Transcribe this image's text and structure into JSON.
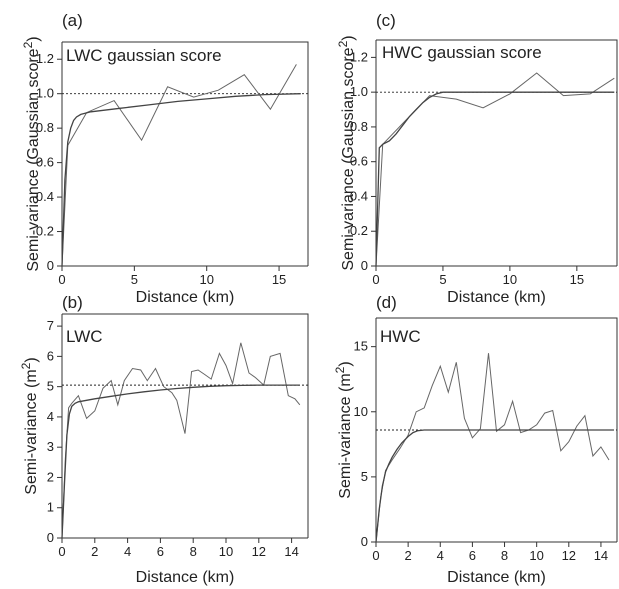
{
  "chart_data": [
    {
      "id": "a",
      "type": "line",
      "panel_label": "(a)",
      "title": "LWC gaussian score",
      "xlabel": "Distance (km)",
      "ylabel": "Semi-variance (Gaussian score²)",
      "ylabel_main": "Semi-variance (Gaussian score",
      "ylabel_sup": "2",
      "ylabel_end": ")",
      "xlim": [
        0,
        17
      ],
      "ylim": [
        0,
        1.3
      ],
      "xticks": [
        0,
        5,
        10,
        15
      ],
      "yticks": [
        0,
        0.2,
        0.4,
        0.6,
        0.8,
        1.0,
        1.2
      ],
      "ytick_labels": [
        "0",
        "0.2",
        "0.4",
        "0.6",
        "0.8",
        "1.0",
        "1.2"
      ],
      "frame": "top-right",
      "sill": 1.0,
      "series": [
        {
          "role": "empirical",
          "x": [
            0,
            0.4,
            1.7,
            3.6,
            5.5,
            7.3,
            9.1,
            10.8,
            12.6,
            14.4,
            16.2
          ],
          "y": [
            0.0,
            0.7,
            0.89,
            0.96,
            0.73,
            1.04,
            0.98,
            1.02,
            1.11,
            0.91,
            1.17
          ]
        },
        {
          "role": "model",
          "x": [
            0,
            0.2,
            0.4,
            0.6,
            0.8,
            1.0,
            1.3,
            2,
            4,
            6,
            8,
            10,
            12,
            14,
            16.5
          ],
          "y": [
            0.0,
            0.5,
            0.72,
            0.8,
            0.845,
            0.865,
            0.88,
            0.895,
            0.915,
            0.935,
            0.955,
            0.97,
            0.985,
            0.995,
            1.0
          ]
        }
      ]
    },
    {
      "id": "b",
      "type": "line",
      "panel_label": "(b)",
      "title": "LWC",
      "xlabel": "Distance (km)",
      "ylabel": "Semi-variance (m²)",
      "ylabel_main": "Semi-variance (m",
      "ylabel_sup": "2",
      "ylabel_end": ")",
      "xlim": [
        0,
        15
      ],
      "ylim": [
        0,
        7.4
      ],
      "xticks": [
        0,
        2,
        4,
        6,
        8,
        10,
        12,
        14
      ],
      "yticks": [
        0,
        1,
        2,
        3,
        4,
        5,
        6,
        7
      ],
      "ytick_labels": [
        "0",
        "1",
        "2",
        "3",
        "4",
        "5",
        "6",
        "7"
      ],
      "frame": "top-right",
      "sill": 5.05,
      "series": [
        {
          "role": "empirical",
          "x": [
            0,
            0.2,
            0.4,
            0.6,
            1.0,
            1.5,
            2.0,
            2.5,
            3.0,
            3.4,
            3.8,
            4.3,
            4.8,
            5.2,
            5.7,
            6.2,
            6.7,
            7.0,
            7.5,
            7.9,
            8.3,
            8.7,
            9.1,
            9.6,
            10.0,
            10.4,
            10.9,
            11.4,
            11.8,
            12.3,
            12.7,
            13.3,
            13.8,
            14.2,
            14.5
          ],
          "y": [
            0.0,
            2.6,
            4.3,
            4.45,
            4.7,
            3.95,
            4.2,
            4.95,
            5.2,
            4.4,
            5.2,
            5.6,
            5.55,
            5.2,
            5.6,
            5.0,
            4.8,
            4.55,
            3.45,
            5.5,
            5.55,
            5.4,
            5.25,
            6.1,
            5.7,
            5.1,
            6.45,
            5.45,
            5.3,
            5.05,
            6.0,
            6.1,
            4.7,
            4.6,
            4.4
          ]
        },
        {
          "role": "model",
          "x": [
            0,
            0.15,
            0.3,
            0.45,
            0.6,
            0.8,
            1.0,
            1.5,
            2,
            3,
            4,
            5,
            6,
            7,
            8,
            9,
            10,
            11,
            12,
            13,
            14.5
          ],
          "y": [
            0.0,
            1.8,
            3.4,
            4.1,
            4.35,
            4.45,
            4.5,
            4.55,
            4.6,
            4.68,
            4.76,
            4.83,
            4.89,
            4.94,
            4.98,
            5.01,
            5.03,
            5.04,
            5.05,
            5.05,
            5.05
          ]
        }
      ]
    },
    {
      "id": "c",
      "type": "line",
      "panel_label": "(c)",
      "title": "HWC gaussian score",
      "xlabel": "Distance (km)",
      "ylabel": "Semi-variance (Gaussian score²)",
      "ylabel_main": "Semi-variance (Gaussian score",
      "ylabel_sup": "2",
      "ylabel_end": ")",
      "xlim": [
        0,
        18
      ],
      "ylim": [
        0,
        1.3
      ],
      "xticks": [
        0,
        5,
        10,
        15
      ],
      "yticks": [
        0,
        0.2,
        0.4,
        0.6,
        0.8,
        1.0,
        1.2
      ],
      "ytick_labels": [
        "0",
        "0.2",
        "0.4",
        "0.6",
        "0.8",
        "1.0",
        "1.2"
      ],
      "frame": "top-right",
      "sill": 1.0,
      "series": [
        {
          "role": "empirical",
          "x": [
            0,
            0.5,
            2.0,
            4.0,
            6.0,
            8.0,
            10.0,
            12.0,
            14.0,
            16.0,
            17.8
          ],
          "y": [
            0.0,
            0.7,
            0.82,
            0.98,
            0.96,
            0.91,
            0.99,
            1.11,
            0.98,
            0.99,
            1.08
          ]
        },
        {
          "role": "model",
          "x": [
            0,
            0.25,
            0.5,
            1,
            1.5,
            2,
            2.5,
            3,
            3.5,
            4,
            4.5,
            5,
            6,
            8,
            10,
            12,
            14,
            16,
            17.8
          ],
          "y": [
            0.0,
            0.68,
            0.7,
            0.72,
            0.76,
            0.81,
            0.86,
            0.9,
            0.94,
            0.97,
            0.99,
            1.0,
            1.0,
            1.0,
            1.0,
            1.0,
            1.0,
            1.0,
            1.0
          ]
        }
      ]
    },
    {
      "id": "d",
      "type": "line",
      "panel_label": "(d)",
      "title": "HWC",
      "xlabel": "Distance (km)",
      "ylabel": "Semi-variance (m²)",
      "ylabel_main": "Semi-variance (m",
      "ylabel_sup": "2",
      "ylabel_end": ")",
      "xlim": [
        0,
        15
      ],
      "ylim": [
        0,
        17.2
      ],
      "xticks": [
        0,
        2,
        4,
        6,
        8,
        10,
        12,
        14
      ],
      "yticks": [
        0,
        5,
        10,
        15
      ],
      "ytick_labels": [
        "0",
        "5",
        "10",
        "15"
      ],
      "frame": "top-right",
      "sill": 8.6,
      "series": [
        {
          "role": "empirical",
          "x": [
            0,
            0.3,
            0.6,
            1.0,
            1.5,
            2.0,
            2.5,
            3.0,
            3.5,
            4.0,
            4.5,
            5.0,
            5.5,
            6.0,
            6.5,
            7.0,
            7.5,
            8.0,
            8.5,
            9.0,
            9.5,
            10.0,
            10.5,
            11.0,
            11.5,
            12.0,
            12.5,
            13.0,
            13.5,
            14.0,
            14.5
          ],
          "y": [
            0.0,
            3.5,
            5.5,
            6.3,
            7.2,
            8.2,
            10.0,
            10.3,
            12.0,
            13.5,
            11.5,
            13.8,
            9.5,
            8.0,
            8.7,
            14.5,
            8.5,
            9.0,
            10.8,
            8.4,
            8.6,
            9.0,
            9.9,
            10.1,
            7.0,
            7.7,
            8.9,
            9.7,
            6.6,
            7.3,
            6.3
          ]
        },
        {
          "role": "model",
          "x": [
            0,
            0.2,
            0.4,
            0.6,
            0.8,
            1.0,
            1.3,
            1.6,
            2.0,
            2.3,
            2.6,
            3.0,
            4,
            6,
            8,
            10,
            12,
            14,
            14.8
          ],
          "y": [
            0.0,
            2.5,
            4.3,
            5.4,
            6.0,
            6.5,
            7.1,
            7.6,
            8.1,
            8.4,
            8.55,
            8.6,
            8.6,
            8.6,
            8.6,
            8.6,
            8.6,
            8.6,
            8.6
          ]
        }
      ]
    }
  ]
}
